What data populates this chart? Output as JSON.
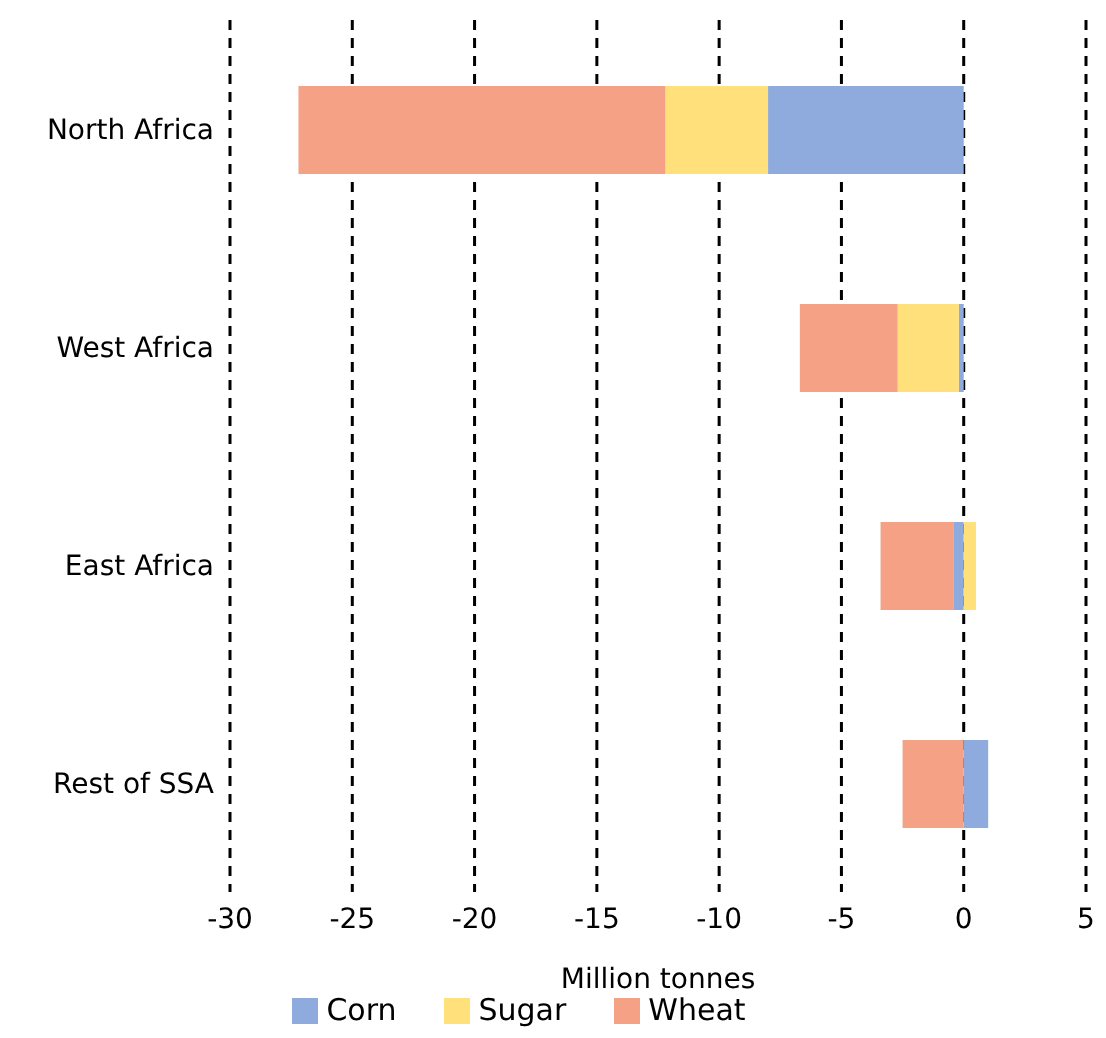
{
  "chart_data": {
    "type": "bar",
    "orientation": "horizontal",
    "stacked": true,
    "xlabel": "Million tonnes",
    "categories": [
      "North Africa",
      "West Africa",
      "East Africa",
      "Rest of SSA"
    ],
    "series": [
      {
        "name": "Corn",
        "color": "#8faadc",
        "values": [
          -8.0,
          -0.2,
          -0.4,
          1.0
        ]
      },
      {
        "name": "Sugar",
        "color": "#ffe07a",
        "values": [
          -4.2,
          -2.5,
          0.5,
          null
        ]
      },
      {
        "name": "Wheat",
        "color": "#f4a185",
        "values": [
          -15.0,
          -4.0,
          -3.0,
          -2.5
        ]
      }
    ],
    "xlim": [
      -30,
      5
    ],
    "xticks": [
      -30,
      -25,
      -20,
      -15,
      -10,
      -5,
      0,
      5
    ],
    "grid": "x",
    "legend": "bottom"
  }
}
